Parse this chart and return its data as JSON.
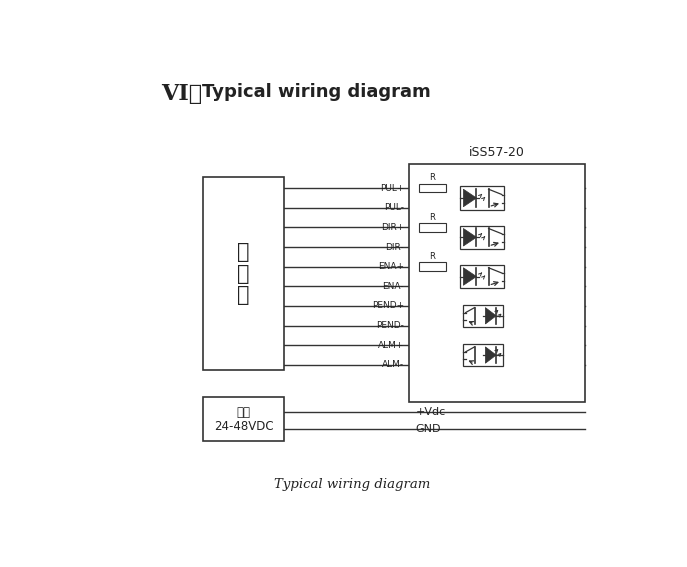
{
  "title_roman": "VI，",
  "title_rest": "  Typical wiring diagram",
  "subtitle": "Typical wiring diagram",
  "iss_label": "iSS57-20",
  "controller_label": [
    "控",
    "制",
    "器"
  ],
  "power_label_line1": "电源",
  "power_label_line2": "24-48VDC",
  "signal_labels": [
    "PUL+",
    "PUL-",
    "DIR+",
    "DIR-",
    "ENA+",
    "ENA-",
    "PEND+",
    "PEND-",
    "ALM+",
    "ALM-"
  ],
  "power_pins": [
    "+Vdc",
    "GND"
  ],
  "bg_color": "#ffffff",
  "line_color": "#333333",
  "text_color": "#222222"
}
